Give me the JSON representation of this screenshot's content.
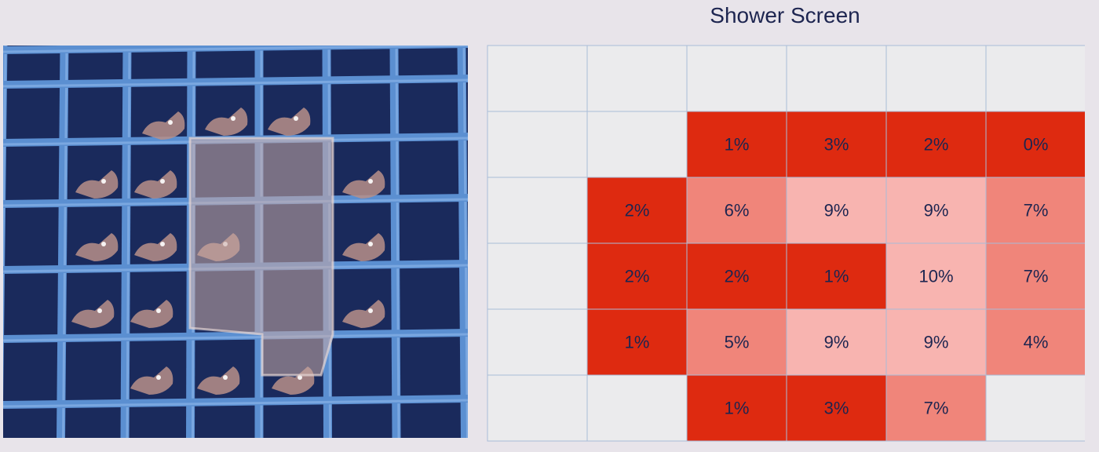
{
  "title": "Shower Screen",
  "chart_data": {
    "type": "heatmap",
    "title": "Shower Screen",
    "rows": 6,
    "cols": 6,
    "values": [
      [
        null,
        null,
        null,
        null,
        null,
        null
      ],
      [
        null,
        null,
        1,
        3,
        2,
        0
      ],
      [
        null,
        2,
        6,
        9,
        9,
        7
      ],
      [
        null,
        2,
        2,
        1,
        10,
        7
      ],
      [
        null,
        1,
        5,
        9,
        9,
        4
      ],
      [
        null,
        null,
        1,
        3,
        7,
        null
      ]
    ],
    "labels": [
      [
        "",
        "",
        "",
        "",
        "",
        ""
      ],
      [
        "",
        "",
        "1%",
        "3%",
        "2%",
        "0%"
      ],
      [
        "",
        "2%",
        "6%",
        "9%",
        "9%",
        "7%"
      ],
      [
        "",
        "2%",
        "2%",
        "1%",
        "10%",
        "7%"
      ],
      [
        "",
        "1%",
        "5%",
        "9%",
        "9%",
        "4%"
      ],
      [
        "",
        "",
        "1%",
        "3%",
        "7%",
        ""
      ]
    ],
    "colors": {
      "empty": "#ebebed",
      "low": "#de2a10",
      "mid": "#f0857a",
      "high": "#f8b4b0",
      "grid": "#a9bcd8"
    }
  },
  "photo": {
    "colors": {
      "background": "#1a2a5c",
      "grid": "#5b8fd1",
      "grid_light": "#8fb7ea",
      "deposit": "#b98f88",
      "puck": "#c9aaa6"
    }
  }
}
